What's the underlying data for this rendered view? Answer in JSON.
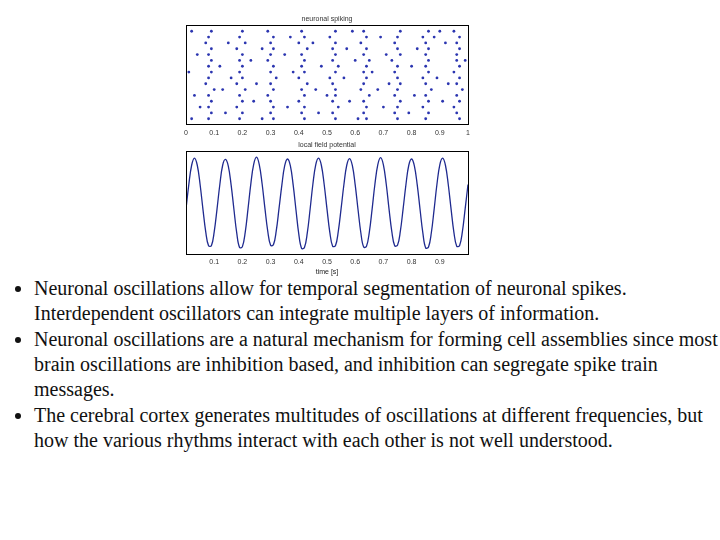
{
  "chart_data": [
    {
      "type": "scatter",
      "title": "neuronal spiking",
      "color": "#2b35b0",
      "marker": "dot",
      "grid": false,
      "tick_labels": "x",
      "xlim": [
        0,
        1
      ],
      "xticks": [
        0,
        0.1,
        0.2,
        0.3,
        0.4,
        0.5,
        0.6,
        0.7,
        0.8,
        0.9,
        1
      ],
      "ylim": [
        0,
        17
      ],
      "spike_trains": [
        [
          0.02,
          0.08,
          0.19,
          0.27,
          0.31,
          0.42,
          0.53,
          0.61,
          0.64,
          0.75,
          0.85,
          0.97
        ],
        [
          0.09,
          0.14,
          0.2,
          0.3,
          0.41,
          0.47,
          0.52,
          0.63,
          0.74,
          0.79,
          0.86,
          0.96
        ],
        [
          0.05,
          0.08,
          0.18,
          0.31,
          0.36,
          0.42,
          0.54,
          0.64,
          0.7,
          0.75,
          0.84,
          0.95
        ],
        [
          0.09,
          0.2,
          0.24,
          0.3,
          0.4,
          0.52,
          0.58,
          0.63,
          0.76,
          0.86,
          0.91,
          0.97
        ],
        [
          0.03,
          0.08,
          0.19,
          0.29,
          0.42,
          0.5,
          0.53,
          0.65,
          0.74,
          0.81,
          0.85,
          0.96
        ],
        [
          0.1,
          0.13,
          0.21,
          0.31,
          0.41,
          0.46,
          0.53,
          0.62,
          0.68,
          0.75,
          0.87,
          0.98
        ],
        [
          0.07,
          0.18,
          0.25,
          0.3,
          0.43,
          0.52,
          0.63,
          0.72,
          0.76,
          0.85,
          0.93,
          0.96
        ],
        [
          0.08,
          0.16,
          0.2,
          0.32,
          0.4,
          0.51,
          0.56,
          0.64,
          0.75,
          0.84,
          0.89,
          0.97
        ],
        [
          0.01,
          0.09,
          0.19,
          0.3,
          0.38,
          0.42,
          0.53,
          0.63,
          0.66,
          0.74,
          0.86,
          0.95
        ],
        [
          0.08,
          0.12,
          0.2,
          0.31,
          0.41,
          0.48,
          0.54,
          0.64,
          0.75,
          0.8,
          0.85,
          0.97
        ],
        [
          0.09,
          0.19,
          0.23,
          0.29,
          0.42,
          0.52,
          0.6,
          0.65,
          0.73,
          0.86,
          0.96,
          0.99
        ],
        [
          0.04,
          0.08,
          0.2,
          0.3,
          0.35,
          0.41,
          0.53,
          0.63,
          0.71,
          0.76,
          0.85,
          0.96
        ],
        [
          0.09,
          0.18,
          0.27,
          0.31,
          0.43,
          0.52,
          0.57,
          0.64,
          0.75,
          0.82,
          0.86,
          0.97
        ],
        [
          0.07,
          0.15,
          0.21,
          0.3,
          0.4,
          0.45,
          0.53,
          0.62,
          0.74,
          0.85,
          0.92,
          0.96
        ],
        [
          0.08,
          0.19,
          0.31,
          0.37,
          0.42,
          0.51,
          0.64,
          0.69,
          0.75,
          0.84,
          0.88,
          0.97
        ],
        [
          0.02,
          0.09,
          0.2,
          0.29,
          0.41,
          0.53,
          0.59,
          0.63,
          0.76,
          0.86,
          0.9,
          0.95
        ]
      ]
    },
    {
      "type": "line",
      "title": "local field potential",
      "xlabel": "time [s]",
      "color": "#1f2a8f",
      "grid": false,
      "tick_labels": "x",
      "xlim": [
        0,
        1
      ],
      "xticks": [
        0.1,
        0.2,
        0.3,
        0.4,
        0.5,
        0.6,
        0.7,
        0.8,
        0.9
      ],
      "ylim": [
        -1.15,
        1.15
      ],
      "x": [
        0,
        0.01,
        0.02,
        0.03,
        0.04,
        0.05,
        0.06,
        0.07,
        0.08,
        0.09,
        0.1,
        0.11,
        0.12,
        0.13,
        0.14,
        0.15,
        0.16,
        0.17,
        0.18,
        0.19,
        0.2,
        0.21,
        0.22,
        0.23,
        0.24,
        0.25,
        0.26,
        0.27,
        0.28,
        0.29,
        0.3,
        0.31,
        0.32,
        0.33,
        0.34,
        0.35,
        0.36,
        0.37,
        0.38,
        0.39,
        0.4,
        0.41,
        0.42,
        0.43,
        0.44,
        0.45,
        0.46,
        0.47,
        0.48,
        0.49,
        0.5,
        0.51,
        0.52,
        0.53,
        0.54,
        0.55,
        0.56,
        0.57,
        0.58,
        0.59,
        0.6,
        0.61,
        0.62,
        0.63,
        0.64,
        0.65,
        0.66,
        0.67,
        0.68,
        0.69,
        0.7,
        0.71,
        0.72,
        0.73,
        0.74,
        0.75,
        0.76,
        0.77,
        0.78,
        0.79,
        0.8,
        0.81,
        0.82,
        0.83,
        0.84,
        0.85,
        0.86,
        0.87,
        0.88,
        0.89,
        0.9,
        0.91,
        0.92,
        0.93,
        0.94,
        0.95,
        0.96,
        0.97,
        0.98,
        0.99,
        1
      ],
      "values": [
        -0.14,
        0.41,
        0.84,
        1,
        0.84,
        0.41,
        -0.14,
        -0.65,
        -0.96,
        -0.96,
        -0.65,
        -0.14,
        0.41,
        0.84,
        0.97,
        0.82,
        0.4,
        -0.15,
        -0.68,
        -1,
        -0.98,
        -0.66,
        -0.13,
        0.43,
        0.86,
        1.02,
        0.85,
        0.42,
        -0.13,
        -0.64,
        -0.95,
        -0.94,
        -0.63,
        -0.12,
        0.4,
        0.83,
        0.98,
        0.83,
        0.4,
        -0.16,
        -0.7,
        -1.02,
        -1,
        -0.68,
        -0.15,
        0.42,
        0.85,
        1,
        0.84,
        0.41,
        -0.14,
        -0.66,
        -0.97,
        -0.96,
        -0.64,
        -0.13,
        0.41,
        0.84,
        0.99,
        0.83,
        0.4,
        -0.15,
        -0.67,
        -0.99,
        -0.97,
        -0.66,
        -0.14,
        0.42,
        0.85,
        1.01,
        0.85,
        0.42,
        -0.14,
        -0.65,
        -0.96,
        -0.95,
        -0.64,
        -0.13,
        0.41,
        0.84,
        0.98,
        0.82,
        0.4,
        -0.15,
        -0.68,
        -1.01,
        -0.99,
        -0.67,
        -0.14,
        0.42,
        0.85,
        1,
        0.84,
        0.41,
        -0.14,
        -0.66,
        -0.97,
        -0.96,
        -0.65,
        -0.13,
        0.41
      ]
    }
  ],
  "bullets": [
    "Neuronal oscillations allow for temporal segmentation of neuronal spikes. Interdependent oscillators can integrate multiple layers of information.",
    "Neuronal oscillations are a natural mechanism for forming cell assemblies since most brain oscillations are inhibition based, and inhibition can segregate spike train messages.",
    "The cerebral cortex generates multitudes of oscillations at different frequencies, but how the various rhythms interact with each other is not well understood."
  ]
}
